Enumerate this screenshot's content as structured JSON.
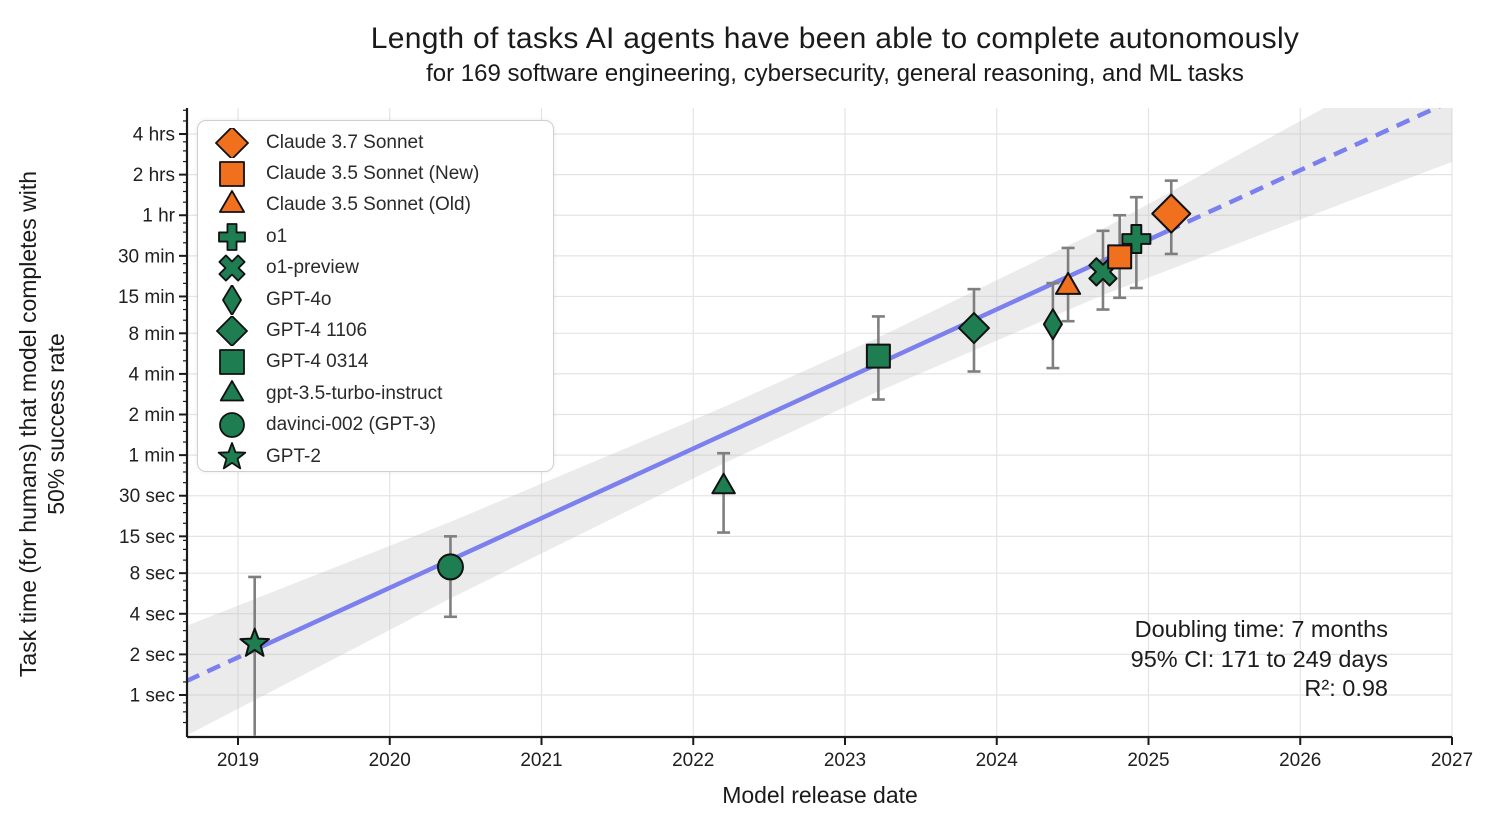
{
  "chart_data": {
    "type": "scatter",
    "title": "Length of tasks AI agents have been able to complete autonomously",
    "subtitle": "for 169 software engineering, cybersecurity, general reasoning, and ML tasks",
    "xlabel": "Model release date",
    "ylabel": "Task time (for humans) that model completes with\n50% success rate",
    "annotation": {
      "line1": "Doubling time: 7 months",
      "line2": "95% CI: 171 to 249 days",
      "line3": "R²: 0.98"
    },
    "x_axis": {
      "ticks": [
        2019,
        2020,
        2021,
        2022,
        2023,
        2024,
        2025,
        2026,
        2027
      ],
      "range": [
        2018.66,
        2027
      ]
    },
    "y_axis": {
      "scale": "log2",
      "ticks": [
        {
          "label": "4 hrs",
          "sec": 14400
        },
        {
          "label": "2 hrs",
          "sec": 7200
        },
        {
          "label": "1 hr",
          "sec": 3600
        },
        {
          "label": "30 min",
          "sec": 1800
        },
        {
          "label": "15 min",
          "sec": 900
        },
        {
          "label": "8 min",
          "sec": 480
        },
        {
          "label": "4 min",
          "sec": 240
        },
        {
          "label": "2 min",
          "sec": 120
        },
        {
          "label": "1 min",
          "sec": 60
        },
        {
          "label": "30 sec",
          "sec": 30
        },
        {
          "label": "15 sec",
          "sec": 15
        },
        {
          "label": "8 sec",
          "sec": 8
        },
        {
          "label": "4 sec",
          "sec": 4
        },
        {
          "label": "2 sec",
          "sec": 2
        },
        {
          "label": "1 sec",
          "sec": 1
        }
      ]
    },
    "series": [
      {
        "name": "Claude 3.7 Sonnet",
        "marker": "diamond",
        "color": "#f0701d",
        "year": 2025.15,
        "sec": 3700,
        "lo_sec": 1860,
        "hi_sec": 6500,
        "size": 19,
        "legend_size": 16
      },
      {
        "name": "Claude 3.5 Sonnet (New)",
        "marker": "square",
        "color": "#f0701d",
        "year": 2024.81,
        "sec": 1770,
        "lo_sec": 880,
        "hi_sec": 3600,
        "size": 11.5,
        "legend_size": 12
      },
      {
        "name": "Claude 3.5 Sonnet (Old)",
        "marker": "triangle",
        "color": "#f0701d",
        "year": 2024.47,
        "sec": 1060,
        "lo_sec": 590,
        "hi_sec": 2060,
        "size": 14,
        "legend_size": 14
      },
      {
        "name": "o1",
        "marker": "plus",
        "color": "#1e7e52",
        "year": 2024.92,
        "sec": 2400,
        "lo_sec": 1040,
        "hi_sec": 4900,
        "size": 14,
        "legend_size": 13
      },
      {
        "name": "o1-preview",
        "marker": "x",
        "color": "#1e7e52",
        "year": 2024.7,
        "sec": 1370,
        "lo_sec": 720,
        "hi_sec": 2760,
        "size": 13,
        "legend_size": 12
      },
      {
        "name": "GPT-4o",
        "marker": "thin_diamond",
        "color": "#1e7e52",
        "year": 2024.37,
        "sec": 560,
        "lo_sec": 265,
        "hi_sec": 1130,
        "size": 15,
        "legend_size": 15
      },
      {
        "name": "GPT-4 1106",
        "marker": "diamond",
        "color": "#1e7e52",
        "year": 2023.85,
        "sec": 525,
        "lo_sec": 250,
        "hi_sec": 1020,
        "size": 15,
        "legend_size": 15
      },
      {
        "name": "GPT-4 0314",
        "marker": "square",
        "color": "#1e7e52",
        "year": 2023.22,
        "sec": 325,
        "lo_sec": 155,
        "hi_sec": 640,
        "size": 11.5,
        "legend_size": 12
      },
      {
        "name": "gpt-3.5-turbo-instruct",
        "marker": "triangle",
        "color": "#1e7e52",
        "year": 2022.2,
        "sec": 35,
        "lo_sec": 16,
        "hi_sec": 62,
        "size": 13,
        "legend_size": 13
      },
      {
        "name": "davinci-002 (GPT-3)",
        "marker": "circle",
        "color": "#1e7e52",
        "year": 2020.4,
        "sec": 8.9,
        "lo_sec": 3.8,
        "hi_sec": 15,
        "size": 12.5,
        "legend_size": 12
      },
      {
        "name": "GPT-2",
        "marker": "star",
        "color": "#1e7e52",
        "year": 2019.11,
        "sec": 2.4,
        "lo_sec": 0.5,
        "hi_sec": 7.5,
        "size": 15,
        "legend_size": 14,
        "clip_lo": true
      }
    ],
    "trend_line": {
      "sec_at_2019": 1.9,
      "doublings_per_year": 1.714,
      "solid_year_range": [
        2019.1,
        2025.12
      ],
      "draw_year_range": [
        2018.66,
        2027
      ],
      "color": "#7b80ee"
    },
    "confidence_band": {
      "color": "#bdbdbd",
      "opacity": 0.3,
      "points": [
        {
          "year": 2018.66,
          "hi_sec": 3.25,
          "lo_sec": 0.5
        },
        {
          "year": 2020.4,
          "hi_sec": 19.2,
          "lo_sec": 5.2
        },
        {
          "year": 2022.2,
          "hi_sec": 136,
          "lo_sec": 52
        },
        {
          "year": 2023.2,
          "hi_sec": 436,
          "lo_sec": 174
        },
        {
          "year": 2024.7,
          "hi_sec": 2855,
          "lo_sec": 923
        },
        {
          "year": 2027.0,
          "hi_sec": 74000,
          "lo_sec": 8960
        }
      ]
    },
    "style": {
      "grid_color": "#e4e4e4",
      "spine_color": "#1a1a1a",
      "error_bar_color": "#7f7f7f",
      "legend_position": "upper left"
    }
  }
}
